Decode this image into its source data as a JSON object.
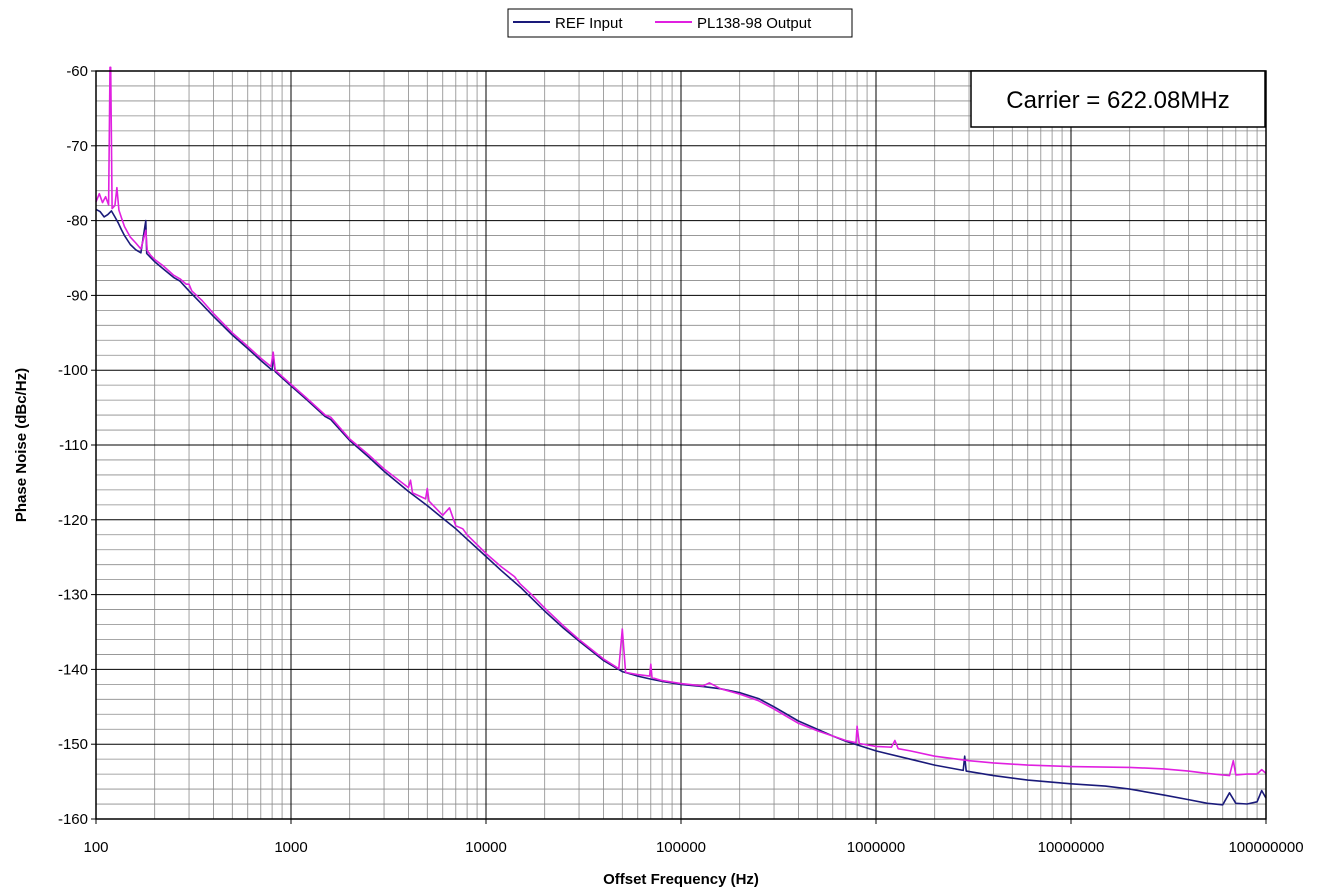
{
  "chart_data": {
    "type": "line",
    "title": "",
    "xlabel": "Offset Frequency (Hz)",
    "ylabel": "Phase Noise (dBc/Hz)",
    "x_scale": "log",
    "xlim": [
      100,
      100000000
    ],
    "ylim": [
      -160,
      -60
    ],
    "x_ticks": [
      "100",
      "1000",
      "10000",
      "100000",
      "1000000",
      "10000000",
      "100000000"
    ],
    "y_ticks": [
      "-60",
      "-70",
      "-80",
      "-90",
      "-100",
      "-110",
      "-120",
      "-130",
      "-140",
      "-150",
      "-160"
    ],
    "grid": true,
    "legend_position": "top-center",
    "annotation": "Carrier = 622.08MHz",
    "series": [
      {
        "name": "REF Input",
        "color": "#1a1a7a",
        "points": [
          [
            100,
            -78.5
          ],
          [
            105,
            -78.8
          ],
          [
            110,
            -79.5
          ],
          [
            115,
            -79.2
          ],
          [
            120,
            -78.7
          ],
          [
            125,
            -79.5
          ],
          [
            130,
            -80.3
          ],
          [
            135,
            -81.2
          ],
          [
            140,
            -82.0
          ],
          [
            150,
            -83.2
          ],
          [
            160,
            -83.9
          ],
          [
            170,
            -84.3
          ],
          [
            180,
            -80.0
          ],
          [
            182,
            -84.4
          ],
          [
            190,
            -84.9
          ],
          [
            200,
            -85.5
          ],
          [
            220,
            -86.4
          ],
          [
            250,
            -87.6
          ],
          [
            270,
            -88.1
          ],
          [
            300,
            -89.4
          ],
          [
            350,
            -91.2
          ],
          [
            400,
            -92.8
          ],
          [
            500,
            -95.3
          ],
          [
            600,
            -97.1
          ],
          [
            700,
            -98.7
          ],
          [
            800,
            -100.0
          ],
          [
            810,
            -98.0
          ],
          [
            830,
            -100.2
          ],
          [
            1000,
            -102.1
          ],
          [
            1200,
            -103.9
          ],
          [
            1500,
            -106.2
          ],
          [
            1600,
            -106.6
          ],
          [
            2000,
            -109.4
          ],
          [
            2500,
            -111.6
          ],
          [
            3000,
            -113.5
          ],
          [
            4000,
            -116.2
          ],
          [
            5000,
            -118.1
          ],
          [
            6000,
            -119.8
          ],
          [
            7000,
            -121.2
          ],
          [
            8000,
            -122.6
          ],
          [
            10000,
            -124.9
          ],
          [
            12000,
            -126.8
          ],
          [
            15000,
            -129.0
          ],
          [
            20000,
            -132.2
          ],
          [
            25000,
            -134.5
          ],
          [
            30000,
            -136.2
          ],
          [
            40000,
            -138.8
          ],
          [
            50000,
            -140.3
          ],
          [
            60000,
            -140.9
          ],
          [
            70000,
            -141.3
          ],
          [
            80000,
            -141.6
          ],
          [
            100000,
            -142.0
          ],
          [
            130000,
            -142.3
          ],
          [
            160000,
            -142.6
          ],
          [
            200000,
            -143.1
          ],
          [
            250000,
            -143.9
          ],
          [
            300000,
            -145.0
          ],
          [
            400000,
            -146.9
          ],
          [
            500000,
            -148.0
          ],
          [
            600000,
            -148.9
          ],
          [
            700000,
            -149.6
          ],
          [
            800000,
            -150.1
          ],
          [
            1000000,
            -150.9
          ],
          [
            1500000,
            -152.0
          ],
          [
            2000000,
            -152.8
          ],
          [
            2800000,
            -153.5
          ],
          [
            2850000,
            -151.6
          ],
          [
            2900000,
            -153.6
          ],
          [
            4000000,
            -154.2
          ],
          [
            6000000,
            -154.8
          ],
          [
            10000000,
            -155.3
          ],
          [
            15000000,
            -155.6
          ],
          [
            20000000,
            -156.0
          ],
          [
            30000000,
            -156.8
          ],
          [
            40000000,
            -157.4
          ],
          [
            50000000,
            -157.9
          ],
          [
            60000000,
            -158.1
          ],
          [
            65000000,
            -156.5
          ],
          [
            70000000,
            -157.9
          ],
          [
            80000000,
            -158.0
          ],
          [
            90000000,
            -157.7
          ],
          [
            95000000,
            -156.2
          ],
          [
            100000000,
            -157.2
          ]
        ]
      },
      {
        "name": "PL138-98 Output",
        "color": "#e020e0",
        "points": [
          [
            100,
            -77.5
          ],
          [
            104,
            -76.4
          ],
          [
            108,
            -77.6
          ],
          [
            112,
            -76.8
          ],
          [
            116,
            -77.9
          ],
          [
            118,
            -59.5
          ],
          [
            119,
            -59.5
          ],
          [
            121,
            -78.4
          ],
          [
            125,
            -78.0
          ],
          [
            128,
            -75.6
          ],
          [
            131,
            -78.6
          ],
          [
            135,
            -79.6
          ],
          [
            140,
            -80.8
          ],
          [
            150,
            -82.2
          ],
          [
            160,
            -83.0
          ],
          [
            170,
            -83.8
          ],
          [
            180,
            -81.3
          ],
          [
            183,
            -84.0
          ],
          [
            190,
            -84.6
          ],
          [
            200,
            -85.2
          ],
          [
            220,
            -86.0
          ],
          [
            250,
            -87.3
          ],
          [
            270,
            -87.8
          ],
          [
            290,
            -88.5
          ],
          [
            300,
            -88.5
          ],
          [
            310,
            -89.4
          ],
          [
            350,
            -90.7
          ],
          [
            400,
            -92.4
          ],
          [
            500,
            -95.0
          ],
          [
            600,
            -96.8
          ],
          [
            700,
            -98.4
          ],
          [
            790,
            -99.5
          ],
          [
            810,
            -97.6
          ],
          [
            830,
            -100.0
          ],
          [
            1000,
            -101.9
          ],
          [
            1200,
            -103.7
          ],
          [
            1500,
            -106.0
          ],
          [
            1600,
            -106.3
          ],
          [
            2000,
            -109.2
          ],
          [
            2500,
            -111.3
          ],
          [
            3000,
            -113.2
          ],
          [
            4000,
            -115.7
          ],
          [
            4100,
            -114.7
          ],
          [
            4200,
            -116.4
          ],
          [
            4900,
            -117.2
          ],
          [
            5000,
            -115.8
          ],
          [
            5100,
            -117.5
          ],
          [
            6000,
            -119.4
          ],
          [
            6500,
            -118.4
          ],
          [
            7000,
            -120.8
          ],
          [
            7600,
            -121.2
          ],
          [
            8000,
            -122.0
          ],
          [
            10000,
            -124.5
          ],
          [
            12000,
            -126.3
          ],
          [
            14000,
            -127.6
          ],
          [
            15000,
            -128.6
          ],
          [
            17000,
            -129.9
          ],
          [
            20000,
            -131.8
          ],
          [
            25000,
            -134.2
          ],
          [
            30000,
            -136.0
          ],
          [
            40000,
            -138.6
          ],
          [
            48000,
            -139.9
          ],
          [
            50000,
            -134.6
          ],
          [
            52000,
            -140.4
          ],
          [
            60000,
            -140.7
          ],
          [
            69000,
            -140.9
          ],
          [
            70000,
            -139.3
          ],
          [
            71000,
            -141.1
          ],
          [
            80000,
            -141.5
          ],
          [
            100000,
            -141.9
          ],
          [
            130000,
            -142.2
          ],
          [
            140000,
            -141.8
          ],
          [
            160000,
            -142.6
          ],
          [
            200000,
            -143.3
          ],
          [
            250000,
            -144.2
          ],
          [
            300000,
            -145.3
          ],
          [
            400000,
            -147.2
          ],
          [
            500000,
            -148.2
          ],
          [
            600000,
            -148.9
          ],
          [
            700000,
            -149.5
          ],
          [
            790000,
            -149.8
          ],
          [
            800000,
            -147.6
          ],
          [
            820000,
            -149.9
          ],
          [
            1000000,
            -150.3
          ],
          [
            1200000,
            -150.4
          ],
          [
            1250000,
            -149.5
          ],
          [
            1300000,
            -150.6
          ],
          [
            1500000,
            -150.9
          ],
          [
            2000000,
            -151.6
          ],
          [
            3000000,
            -152.2
          ],
          [
            4000000,
            -152.5
          ],
          [
            6000000,
            -152.8
          ],
          [
            10000000,
            -153.0
          ],
          [
            20000000,
            -153.1
          ],
          [
            30000000,
            -153.3
          ],
          [
            40000000,
            -153.6
          ],
          [
            50000000,
            -153.9
          ],
          [
            60000000,
            -154.1
          ],
          [
            65000000,
            -154.2
          ],
          [
            68000000,
            -152.2
          ],
          [
            70000000,
            -154.1
          ],
          [
            80000000,
            -154.0
          ],
          [
            90000000,
            -154.0
          ],
          [
            95000000,
            -153.4
          ],
          [
            100000000,
            -153.9
          ]
        ]
      }
    ]
  }
}
